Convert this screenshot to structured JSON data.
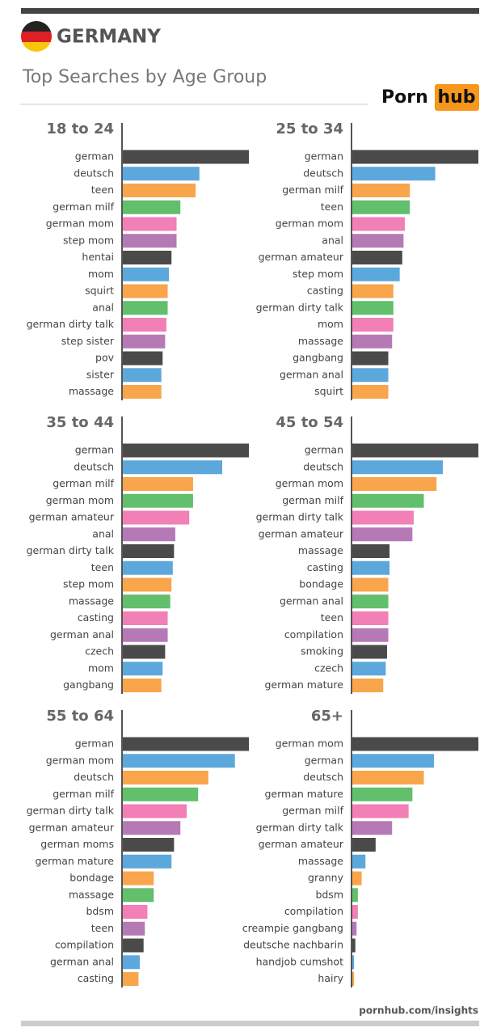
{
  "header": {
    "title": "GERMANY",
    "subtitle": "Top Searches by Age Group",
    "brand": "Porn",
    "brand_highlight": "hub"
  },
  "footer": "pornhub.com/insights",
  "chart_data": [
    {
      "type": "bar",
      "title": "18 to 24",
      "xlim": [
        0,
        100
      ],
      "palette": [
        "#4a4a4a",
        "#5ca8dc",
        "#f8a54b",
        "#62bf6b",
        "#f27fb5",
        "#b57ab6"
      ],
      "categories": [
        "german",
        "deutsch",
        "teen",
        "german milf",
        "german mom",
        "step mom",
        "hentai",
        "mom",
        "squirt",
        "anal",
        "german dirty talk",
        "step sister",
        "pov",
        "sister",
        "massage"
      ],
      "values": [
        100,
        61,
        58,
        46,
        43,
        43,
        39,
        37,
        36,
        36,
        35,
        34,
        32,
        31,
        31
      ]
    },
    {
      "type": "bar",
      "title": "25 to 34",
      "xlim": [
        0,
        100
      ],
      "palette": [
        "#4a4a4a",
        "#5ca8dc",
        "#f8a54b",
        "#62bf6b",
        "#f27fb5",
        "#b57ab6"
      ],
      "categories": [
        "german",
        "deutsch",
        "german milf",
        "teen",
        "german mom",
        "anal",
        "german amateur",
        "step mom",
        "casting",
        "german dirty talk",
        "mom",
        "massage",
        "gangbang",
        "german anal",
        "squirt"
      ],
      "values": [
        100,
        66,
        46,
        46,
        42,
        41,
        40,
        38,
        33,
        33,
        33,
        32,
        29,
        29,
        29
      ]
    },
    {
      "type": "bar",
      "title": "35 to 44",
      "xlim": [
        0,
        100
      ],
      "palette": [
        "#4a4a4a",
        "#5ca8dc",
        "#f8a54b",
        "#62bf6b",
        "#f27fb5",
        "#b57ab6"
      ],
      "categories": [
        "german",
        "deutsch",
        "german milf",
        "german mom",
        "german amateur",
        "anal",
        "german dirty talk",
        "teen",
        "step mom",
        "massage",
        "casting",
        "german anal",
        "czech",
        "mom",
        "gangbang"
      ],
      "values": [
        100,
        79,
        56,
        56,
        53,
        42,
        41,
        40,
        39,
        38,
        36,
        36,
        34,
        32,
        31
      ]
    },
    {
      "type": "bar",
      "title": "45 to 54",
      "xlim": [
        0,
        100
      ],
      "palette": [
        "#4a4a4a",
        "#5ca8dc",
        "#f8a54b",
        "#62bf6b",
        "#f27fb5",
        "#b57ab6"
      ],
      "categories": [
        "german",
        "deutsch",
        "german mom",
        "german milf",
        "german dirty talk",
        "german amateur",
        "massage",
        "casting",
        "bondage",
        "german anal",
        "teen",
        "compilation",
        "smoking",
        "czech",
        "german mature"
      ],
      "values": [
        100,
        72,
        67,
        57,
        49,
        48,
        30,
        30,
        29,
        29,
        29,
        29,
        28,
        27,
        25
      ]
    },
    {
      "type": "bar",
      "title": "55 to 64",
      "xlim": [
        0,
        100
      ],
      "palette": [
        "#4a4a4a",
        "#5ca8dc",
        "#f8a54b",
        "#62bf6b",
        "#f27fb5",
        "#b57ab6"
      ],
      "categories": [
        "german",
        "german mom",
        "deutsch",
        "german milf",
        "german dirty talk",
        "german amateur",
        "german moms",
        "german mature",
        "bondage",
        "massage",
        "bdsm",
        "teen",
        "compilation",
        "german anal",
        "casting"
      ],
      "values": [
        100,
        89,
        68,
        60,
        51,
        46,
        41,
        39,
        25,
        25,
        20,
        18,
        17,
        14,
        13
      ]
    },
    {
      "type": "bar",
      "title": "65+",
      "xlim": [
        0,
        100
      ],
      "palette": [
        "#4a4a4a",
        "#5ca8dc",
        "#f8a54b",
        "#62bf6b",
        "#f27fb5",
        "#b57ab6"
      ],
      "categories": [
        "german mom",
        "german",
        "deutsch",
        "german mature",
        "german milf",
        "german dirty talk",
        "german amateur",
        "massage",
        "granny",
        "bdsm",
        "compilation",
        "creampie gangbang",
        "deutsche nachbarin",
        "handjob cumshot",
        "hairy"
      ],
      "values": [
        100,
        65,
        57,
        48,
        45,
        32,
        19,
        11,
        8,
        5,
        5,
        4,
        3,
        2,
        2
      ]
    }
  ]
}
